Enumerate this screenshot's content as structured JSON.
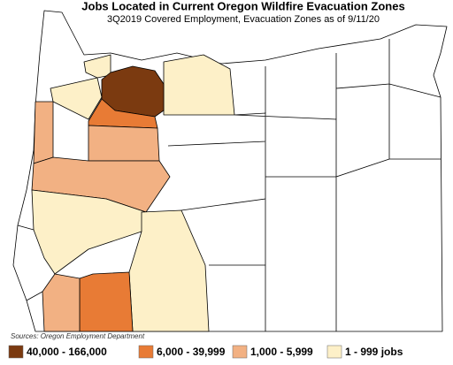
{
  "title": "Jobs Located in Current Oregon Wildfire Evacuation Zones",
  "subtitle": "3Q2019 Covered Employment, Evacuation Zones as of 9/11/20",
  "source": "Sources: Oregon Employment Department",
  "legend": [
    {
      "label": "40,000 - 166,000",
      "color": "#7b3a10"
    },
    {
      "label": "6,000 - 39,999",
      "color": "#e87b35"
    },
    {
      "label": "1,000 - 5,999",
      "color": "#f2b183"
    },
    {
      "label": "1 - 999 jobs",
      "color": "#fdf0c8"
    }
  ]
}
